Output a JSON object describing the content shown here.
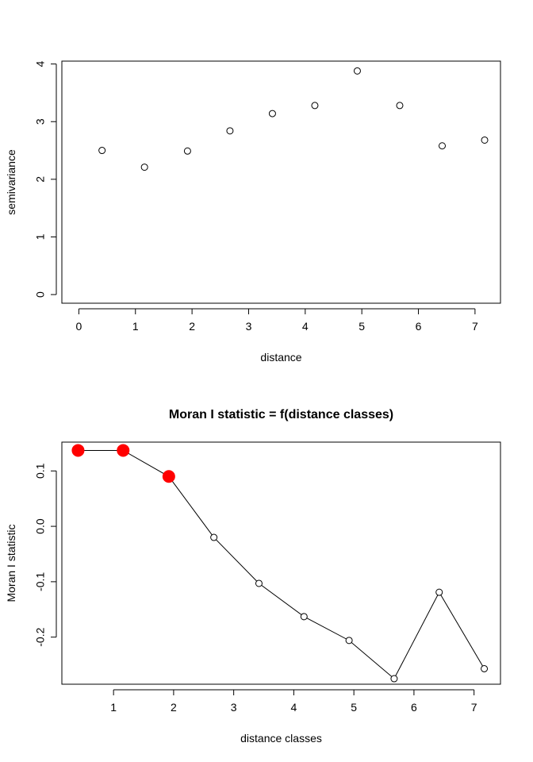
{
  "chart_data": [
    {
      "type": "scatter",
      "title": "",
      "xlabel": "distance",
      "ylabel": "semivariance",
      "xlim": [
        -0.3,
        7.45
      ],
      "ylim": [
        -0.15,
        4.05
      ],
      "xticks": [
        "0",
        "1",
        "2",
        "3",
        "4",
        "5",
        "6",
        "7"
      ],
      "yticks": [
        "0",
        "1",
        "2",
        "3",
        "4"
      ],
      "grid": false,
      "series": [
        {
          "x": [
            0.41,
            1.16,
            1.92,
            2.67,
            3.42,
            4.17,
            4.92,
            5.67,
            6.42,
            7.17
          ],
          "y": [
            2.5,
            2.21,
            2.49,
            2.84,
            3.14,
            3.28,
            3.88,
            3.28,
            2.58,
            2.68
          ]
        }
      ]
    },
    {
      "type": "line",
      "title": "Moran I statistic = f(distance classes)",
      "xlabel": "distance classes",
      "ylabel": "Moran I statistic",
      "xlim": [
        0.14,
        7.44
      ],
      "ylim": [
        -0.285,
        0.152
      ],
      "xticks": [
        "1",
        "2",
        "3",
        "4",
        "5",
        "6",
        "7"
      ],
      "yticks": [
        "-0.2",
        "-0.1",
        "0.0",
        "0.1"
      ],
      "grid": false,
      "highlight_color": "#ff0000",
      "series": [
        {
          "x": [
            0.41,
            1.16,
            1.92,
            2.67,
            3.42,
            4.17,
            4.92,
            5.67,
            6.42,
            7.17
          ],
          "y": [
            0.137,
            0.137,
            0.09,
            -0.02,
            -0.103,
            -0.163,
            -0.206,
            -0.275,
            -0.119,
            -0.257
          ],
          "significant": [
            true,
            true,
            true,
            false,
            false,
            false,
            false,
            false,
            false,
            false
          ]
        }
      ]
    }
  ]
}
